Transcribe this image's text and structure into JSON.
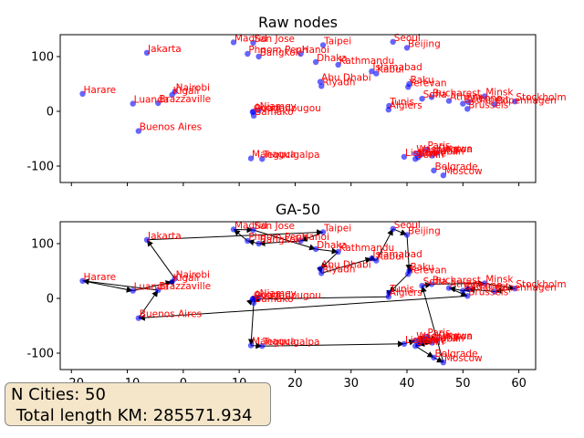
{
  "chart_data": [
    {
      "type": "scatter",
      "title": "Raw nodes",
      "xlim": [
        -22,
        63
      ],
      "ylim": [
        -130,
        140
      ],
      "xticks": [
        -20,
        -10,
        0,
        10,
        20,
        30,
        40,
        50,
        60
      ],
      "yticks": [
        -100,
        0,
        100
      ],
      "show_xtick_labels": false,
      "marker_color": "#0000ff",
      "label_color": "#ff0000",
      "draw_route": false
    },
    {
      "type": "scatter",
      "title": "GA-50",
      "xlim": [
        -22,
        63
      ],
      "ylim": [
        -130,
        140
      ],
      "xticks": [
        -20,
        -10,
        0,
        10,
        20,
        30,
        40,
        50,
        60
      ],
      "yticks": [
        -100,
        0,
        100
      ],
      "show_xtick_labels": true,
      "marker_color": "#0000ff",
      "label_color": "#ff0000",
      "draw_route": true
    }
  ],
  "cities": [
    {
      "name": "Harare",
      "x": -18,
      "y": 32
    },
    {
      "name": "Luanda",
      "x": -9,
      "y": 14
    },
    {
      "name": "Brazzaville",
      "x": -4.5,
      "y": 15
    },
    {
      "name": "Buenos Aires",
      "x": -8,
      "y": -36
    },
    {
      "name": "Jakarta",
      "x": -6.5,
      "y": 107
    },
    {
      "name": "Nairobi",
      "x": -1.5,
      "y": 36
    },
    {
      "name": "Kigali",
      "x": -2,
      "y": 30
    },
    {
      "name": "Madrid",
      "x": 9,
      "y": 126
    },
    {
      "name": "San Jose",
      "x": 12.5,
      "y": 125
    },
    {
      "name": "Phnom Penh",
      "x": 11.5,
      "y": 105
    },
    {
      "name": "Bangkok",
      "x": 13.5,
      "y": 100
    },
    {
      "name": "Hanoi",
      "x": 21,
      "y": 105
    },
    {
      "name": "Taipei",
      "x": 25,
      "y": 121
    },
    {
      "name": "Dhaka",
      "x": 23.7,
      "y": 90
    },
    {
      "name": "Kathmandu",
      "x": 27.7,
      "y": 85
    },
    {
      "name": "Abu Dhabi",
      "x": 24.5,
      "y": 54
    },
    {
      "name": "Riyadh",
      "x": 24.7,
      "y": 46
    },
    {
      "name": "Islamabad",
      "x": 33.7,
      "y": 73
    },
    {
      "name": "Kabul",
      "x": 34.5,
      "y": 69
    },
    {
      "name": "Seoul",
      "x": 37.5,
      "y": 127
    },
    {
      "name": "Beijing",
      "x": 40,
      "y": 116
    },
    {
      "name": "Baku",
      "x": 40.4,
      "y": 50
    },
    {
      "name": "Yerevan",
      "x": 40.2,
      "y": 44.5
    },
    {
      "name": "Accra",
      "x": 12.5,
      "y": -0.5
    },
    {
      "name": "Niamey",
      "x": 13.5,
      "y": 2
    },
    {
      "name": "Ouagadougou",
      "x": 12.4,
      "y": -1.5
    },
    {
      "name": "Bamako",
      "x": 12.6,
      "y": -8
    },
    {
      "name": "Tunis",
      "x": 36.8,
      "y": 10
    },
    {
      "name": "Algiers",
      "x": 36.7,
      "y": 3
    },
    {
      "name": "Sofia",
      "x": 42.7,
      "y": 23
    },
    {
      "name": "Bucharest",
      "x": 44.4,
      "y": 26
    },
    {
      "name": "Athens",
      "x": 47.5,
      "y": 19
    },
    {
      "name": "Budapest",
      "x": 50,
      "y": 14
    },
    {
      "name": "Vienna",
      "x": 51,
      "y": 17
    },
    {
      "name": "Minsk",
      "x": 53.9,
      "y": 27.5
    },
    {
      "name": "Copenhagen",
      "x": 55.7,
      "y": 12.5
    },
    {
      "name": "Brussels",
      "x": 50.8,
      "y": 4.4
    },
    {
      "name": "Stockholm",
      "x": 59.3,
      "y": 18
    },
    {
      "name": "Managua",
      "x": 12.1,
      "y": -86
    },
    {
      "name": "Tegucigalpa",
      "x": 14.1,
      "y": -87
    },
    {
      "name": "Paris",
      "x": 43.5,
      "y": -70
    },
    {
      "name": "Ottawa",
      "x": 45.4,
      "y": -75.7
    },
    {
      "name": "Washington",
      "x": 41.5,
      "y": -77
    },
    {
      "name": "Havana",
      "x": 42.5,
      "y": -79
    },
    {
      "name": "Dublin",
      "x": 44.5,
      "y": -81
    },
    {
      "name": "Lisbon",
      "x": 39.5,
      "y": -83
    },
    {
      "name": "Berlin",
      "x": 41.5,
      "y": -87
    },
    {
      "name": "Rome",
      "x": 42,
      "y": -84
    },
    {
      "name": "Belgrade",
      "x": 44.8,
      "y": -108
    },
    {
      "name": "Moscow",
      "x": 46.5,
      "y": -117
    }
  ],
  "route": [
    "Harare",
    "Luanda",
    "Kigali",
    "Nairobi",
    "Jakarta",
    "Taipei",
    "Hanoi",
    "Bangkok",
    "Phnom Penh",
    "Madrid",
    "San Jose",
    "Dhaka",
    "Kathmandu",
    "Abu Dhabi",
    "Riyadh",
    "Islamabad",
    "Kabul",
    "Seoul",
    "Beijing",
    "Baku",
    "Yerevan",
    "Tunis",
    "Algiers",
    "Ouagadougou",
    "Accra",
    "Niamey",
    "Bamako",
    "Managua",
    "Tegucigalpa",
    "Lisbon",
    "Washington",
    "Paris",
    "Ottawa",
    "Havana",
    "Dublin",
    "Rome",
    "Berlin",
    "Belgrade",
    "Moscow",
    "Sofia",
    "Bucharest",
    "Minsk",
    "Stockholm",
    "Copenhagen",
    "Vienna",
    "Budapest",
    "Athens",
    "Brussels",
    "Buenos Aires",
    "Brazzaville",
    "Harare"
  ],
  "info": {
    "cities_line": "N Cities: 50",
    "length_line": " Total length KM: 285571.934"
  }
}
